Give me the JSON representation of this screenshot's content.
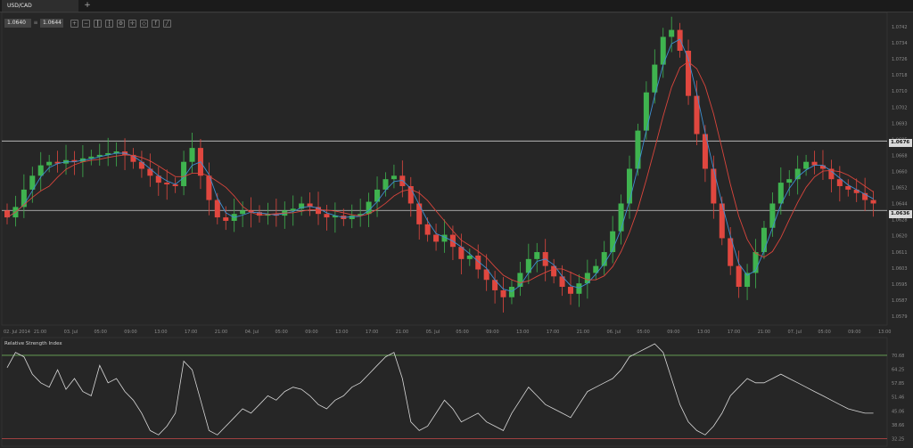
{
  "tabs": [
    {
      "label": "USD/CAD"
    }
  ],
  "tab_add_label": "+",
  "price_bid": "1.0640",
  "price_ask": "1.0644",
  "price_separator": "≡",
  "toolbar": [
    {
      "icon": "zoom-in-icon",
      "glyph": "+"
    },
    {
      "icon": "zoom-out-icon",
      "glyph": "−"
    },
    {
      "icon": "candles-icon",
      "glyph": "┃"
    },
    {
      "icon": "bars-icon",
      "glyph": "┇"
    },
    {
      "icon": "settings-icon",
      "glyph": "⚙"
    },
    {
      "icon": "crosshair-icon",
      "glyph": "✛"
    },
    {
      "icon": "tag-icon",
      "glyph": "◇"
    },
    {
      "icon": "indicator-icon",
      "glyph": "f"
    },
    {
      "icon": "draw-line-icon",
      "glyph": "╱"
    }
  ],
  "horizontal_levels": [
    {
      "label": "1.0676",
      "value": 1.0676,
      "color": "#cccccc"
    },
    {
      "label": "1.0636",
      "value": 1.0636,
      "color": "#cccccc"
    }
  ],
  "y_ticks": [
    "1.0742",
    "1.0734",
    "1.0726",
    "1.0718",
    "1.0710",
    "1.0702",
    "1.0693",
    "1.0685",
    "1.0668",
    "1.0660",
    "1.0652",
    "1.0644",
    "1.0628",
    "1.0620",
    "1.0611",
    "1.0603",
    "1.0595",
    "1.0587",
    "1.0579"
  ],
  "x_ticks": [
    "02. Jul 2014",
    "21:00",
    "03. Jul",
    "05:00",
    "09:00",
    "13:00",
    "17:00",
    "21:00",
    "04. Jul",
    "05:00",
    "09:00",
    "13:00",
    "17:00",
    "21:00",
    "05. Jul",
    "05:00",
    "09:00",
    "13:00",
    "17:00",
    "21:00",
    "06. Jul",
    "05:00",
    "09:00",
    "13:00",
    "17:00",
    "21:00",
    "07. Jul",
    "05:00",
    "09:00",
    "13:00"
  ],
  "rsi": {
    "title": "Relative Strength Index",
    "y_ticks": [
      "70.68",
      "64.25",
      "57.85",
      "51.46",
      "45.06",
      "38.66",
      "32.25"
    ],
    "upper_level": 70.68,
    "lower_level": 32.25,
    "colors": {
      "line": "#d8d8d8",
      "upper": "#6fae5a",
      "lower": "#c94a4a"
    }
  },
  "colors": {
    "up": "#3fb34f",
    "down": "#e0473f",
    "ma_fast": "#3d8fd1",
    "ma_slow": "#d9453c",
    "grid": "#2f2f2f",
    "background": "#262626"
  },
  "chart_data": {
    "type": "candlestick",
    "symbol": "USD/CAD",
    "y_range": [
      1.0572,
      1.0748
    ],
    "close_series": [
      1.0632,
      1.0638,
      1.0648,
      1.0656,
      1.0662,
      1.0664,
      1.0663,
      1.0665,
      1.0664,
      1.0666,
      1.0667,
      1.0668,
      1.0669,
      1.067,
      1.0668,
      1.0664,
      1.066,
      1.0656,
      1.0652,
      1.0651,
      1.065,
      1.0664,
      1.0672,
      1.0656,
      1.0642,
      1.0632,
      1.063,
      1.0634,
      1.0636,
      1.0635,
      1.0633,
      1.0634,
      1.0633,
      1.0636,
      1.0637,
      1.064,
      1.0638,
      1.0634,
      1.0632,
      1.0633,
      1.0631,
      1.0633,
      1.0634,
      1.0641,
      1.0648,
      1.0654,
      1.0656,
      1.065,
      1.064,
      1.0628,
      1.0622,
      1.0618,
      1.0622,
      1.0615,
      1.0608,
      1.061,
      1.0602,
      1.0596,
      1.059,
      1.0586,
      1.0592,
      1.06,
      1.0608,
      1.0612,
      1.0604,
      1.0598,
      1.0592,
      1.0588,
      1.0594,
      1.06,
      1.0604,
      1.0612,
      1.0624,
      1.064,
      1.066,
      1.0682,
      1.0704,
      1.072,
      1.0736,
      1.074,
      1.0728,
      1.0702,
      1.068,
      1.066,
      1.064,
      1.062,
      1.0604,
      1.0592,
      1.06,
      1.0612,
      1.0626,
      1.064,
      1.0652,
      1.0654,
      1.066,
      1.0664,
      1.0662,
      1.066,
      1.0654,
      1.065,
      1.0648,
      1.0646,
      1.0642,
      1.064
    ],
    "rsi_series": [
      65,
      72,
      70,
      62,
      58,
      56,
      64,
      55,
      60,
      54,
      52,
      66,
      58,
      60,
      54,
      50,
      44,
      36,
      34,
      38,
      44,
      68,
      64,
      50,
      36,
      34,
      38,
      42,
      46,
      44,
      48,
      52,
      50,
      54,
      56,
      55,
      52,
      48,
      46,
      50,
      52,
      56,
      58,
      62,
      66,
      70,
      72,
      60,
      40,
      36,
      38,
      44,
      50,
      46,
      40,
      42,
      44,
      40,
      38,
      36,
      44,
      50,
      56,
      52,
      48,
      46,
      44,
      42,
      48,
      54,
      56,
      58,
      60,
      64,
      70,
      72,
      74,
      76,
      72,
      60,
      48,
      40,
      36,
      34,
      38,
      44,
      52,
      56,
      60,
      58,
      58,
      60,
      62,
      60,
      58,
      56,
      54,
      52,
      50,
      48,
      46,
      45,
      44,
      44
    ]
  }
}
